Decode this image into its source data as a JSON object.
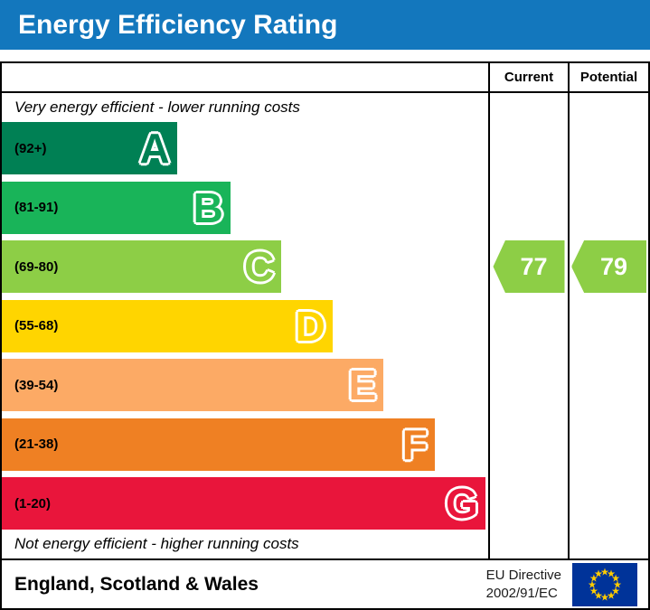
{
  "header": {
    "title": "Energy Efficiency Rating",
    "bg_color": "#1377bd",
    "text_color": "#ffffff"
  },
  "table": {
    "columns": {
      "current": "Current",
      "potential": "Potential"
    },
    "top_note": "Very energy efficient - lower running costs",
    "bottom_note": "Not energy efficient - higher running costs",
    "bands": [
      {
        "letter": "A",
        "range": "(92+)",
        "color": "#008054",
        "width_pct": 36
      },
      {
        "letter": "B",
        "range": "(81-91)",
        "color": "#19b459",
        "width_pct": 47
      },
      {
        "letter": "C",
        "range": "(69-80)",
        "color": "#8dce46",
        "width_pct": 57.5
      },
      {
        "letter": "D",
        "range": "(55-68)",
        "color": "#ffd500",
        "width_pct": 68
      },
      {
        "letter": "E",
        "range": "(39-54)",
        "color": "#fcaa65",
        "width_pct": 78.5
      },
      {
        "letter": "F",
        "range": "(21-38)",
        "color": "#ef8023",
        "width_pct": 89
      },
      {
        "letter": "G",
        "range": "(1-20)",
        "color": "#e9153b",
        "width_pct": 99.4
      }
    ],
    "ratings": {
      "current": {
        "value": 77,
        "band": "C",
        "color": "#8dce46"
      },
      "potential": {
        "value": 79,
        "band": "C",
        "color": "#8dce46"
      }
    }
  },
  "footer": {
    "region": "England, Scotland & Wales",
    "directive_line1": "EU Directive",
    "directive_line2": "2002/91/EC",
    "flag": {
      "icon": "eu-flag-icon",
      "bg": "#003399",
      "star": "#ffcc00"
    }
  },
  "chart_data": {
    "type": "bar",
    "orientation": "horizontal",
    "title": "Energy Efficiency Rating",
    "categories": [
      "A",
      "B",
      "C",
      "D",
      "E",
      "F",
      "G"
    ],
    "band_ranges": [
      "92+",
      "81-91",
      "69-80",
      "55-68",
      "39-54",
      "21-38",
      "1-20"
    ],
    "band_colors": [
      "#008054",
      "#19b459",
      "#8dce46",
      "#ffd500",
      "#fcaa65",
      "#ef8023",
      "#e9153b"
    ],
    "bar_width_pct": [
      36,
      47,
      57.5,
      68,
      78.5,
      89,
      99.4
    ],
    "markers": [
      {
        "name": "Current",
        "value": 77,
        "band": "C"
      },
      {
        "name": "Potential",
        "value": 79,
        "band": "C"
      }
    ],
    "footnote": "England, Scotland & Wales — EU Directive 2002/91/EC"
  }
}
